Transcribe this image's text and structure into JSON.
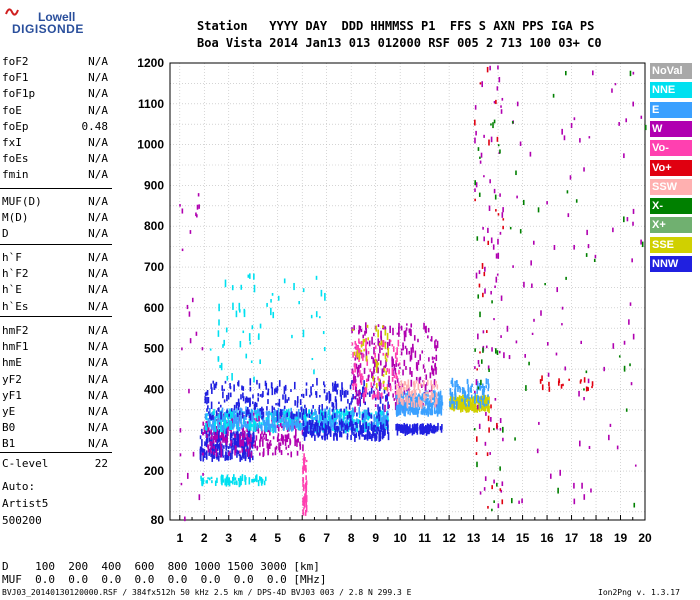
{
  "logo": {
    "line1": "Lowell",
    "line2": "DIGISONDE"
  },
  "header": {
    "row1": "Station   YYYY DAY  DDD HHMMSS P1  FFS S AXN PPS IGA PS",
    "row2": "Boa Vista 2014 Jan13 013 012000 RSF 005 2 713 100 03+ C0"
  },
  "params": {
    "group1": [
      {
        "name": "foF2",
        "value": "N/A"
      },
      {
        "name": "foF1",
        "value": "N/A"
      },
      {
        "name": "foF1p",
        "value": "N/A"
      },
      {
        "name": "foE",
        "value": "N/A"
      },
      {
        "name": "foEp",
        "value": "0.48"
      },
      {
        "name": "fxI",
        "value": "N/A"
      },
      {
        "name": "foEs",
        "value": "N/A"
      },
      {
        "name": "fmin",
        "value": "N/A"
      }
    ],
    "group2": [
      {
        "name": "MUF(D)",
        "value": "N/A"
      },
      {
        "name": "M(D)",
        "value": "N/A"
      },
      {
        "name": "D",
        "value": "N/A"
      }
    ],
    "group3": [
      {
        "name": "h`F",
        "value": "N/A"
      },
      {
        "name": "h`F2",
        "value": "N/A"
      },
      {
        "name": "h`E",
        "value": "N/A"
      },
      {
        "name": "h`Es",
        "value": "N/A"
      }
    ],
    "group4": [
      {
        "name": "hmF2",
        "value": "N/A"
      },
      {
        "name": "hmF1",
        "value": "N/A"
      },
      {
        "name": "hmE",
        "value": "N/A"
      },
      {
        "name": "yF2",
        "value": "N/A"
      },
      {
        "name": "yF1",
        "value": "N/A"
      },
      {
        "name": "yE",
        "value": "N/A"
      },
      {
        "name": "B0",
        "value": "N/A"
      },
      {
        "name": "B1",
        "value": "N/A"
      }
    ],
    "clevel": {
      "name": "C-level",
      "value": "22"
    }
  },
  "auto": {
    "line1": "Auto:",
    "line2": "Artist5",
    "line3": "500200"
  },
  "legend": [
    {
      "label": "NoVal",
      "color": "#a8a8a8"
    },
    {
      "label": "NNE",
      "color": "#00e0f0"
    },
    {
      "label": "E",
      "color": "#3aa0ff"
    },
    {
      "label": "W",
      "color": "#b000b0"
    },
    {
      "label": "Vo-",
      "color": "#ff40b0"
    },
    {
      "label": "Vo+",
      "color": "#e00010"
    },
    {
      "label": "SSW",
      "color": "#ffb0b0"
    },
    {
      "label": "X-",
      "color": "#008000"
    },
    {
      "label": "X+",
      "color": "#70b070"
    },
    {
      "label": "SSE",
      "color": "#d0d000"
    },
    {
      "label": "NNW",
      "color": "#2020e0"
    }
  ],
  "bottom": {
    "d_row": "D    100  200  400  600  800 1000 1500 3000 [km]",
    "muf_row": "MUF  0.0  0.0  0.0  0.0  0.0  0.0  0.0  0.0 [MHz]"
  },
  "footer": {
    "left": "BVJ03_20140130120000.RSF / 384fx512h 50 kHz 2.5 km / DPS-4D BVJ03 003 / 2.8 N 299.3 E",
    "right": "Ion2Png v. 1.3.17"
  },
  "chart_data": {
    "type": "scatter",
    "title": "",
    "xlabel": "",
    "ylabel": "",
    "xlim": [
      0.6,
      20
    ],
    "ylim": [
      80,
      1200
    ],
    "x_ticks": [
      1,
      2,
      3,
      4,
      5,
      6,
      7,
      8,
      9,
      10,
      11,
      12,
      13,
      14,
      15,
      16,
      17,
      18,
      19,
      20
    ],
    "y_ticks": [
      80,
      200,
      300,
      400,
      500,
      600,
      700,
      800,
      900,
      1000,
      1100,
      1200
    ],
    "grid": true,
    "legend_position": "right",
    "clusters": [
      {
        "series": "NNW",
        "x": [
          1.8,
          4.0
        ],
        "y": [
          230,
          300
        ],
        "density": 260
      },
      {
        "series": "W",
        "x": [
          1.9,
          6.0
        ],
        "y": [
          240,
          340
        ],
        "density": 260
      },
      {
        "series": "NNE",
        "x": [
          2.0,
          9.5
        ],
        "y": [
          300,
          345
        ],
        "density": 420
      },
      {
        "series": "E",
        "x": [
          2.0,
          9.5
        ],
        "y": [
          300,
          350
        ],
        "density": 320
      },
      {
        "series": "NNW",
        "x": [
          2.0,
          9.5
        ],
        "y": [
          330,
          420
        ],
        "density": 260
      },
      {
        "series": "NNW",
        "x": [
          6.0,
          9.5
        ],
        "y": [
          280,
          320
        ],
        "density": 180
      },
      {
        "series": "W",
        "x": [
          8.0,
          11.5
        ],
        "y": [
          350,
          560
        ],
        "density": 240
      },
      {
        "series": "Vo-",
        "x": [
          8.0,
          10.0
        ],
        "y": [
          380,
          520
        ],
        "density": 80
      },
      {
        "series": "SSE",
        "x": [
          8.0,
          9.5
        ],
        "y": [
          400,
          560
        ],
        "density": 40
      },
      {
        "series": "E",
        "x": [
          9.8,
          11.7
        ],
        "y": [
          340,
          390
        ],
        "density": 260
      },
      {
        "series": "SSW",
        "x": [
          9.8,
          11.5
        ],
        "y": [
          360,
          420
        ],
        "density": 80
      },
      {
        "series": "NNW",
        "x": [
          9.8,
          11.7
        ],
        "y": [
          295,
          310
        ],
        "density": 120
      },
      {
        "series": "SSE",
        "x": [
          12.0,
          13.6
        ],
        "y": [
          350,
          380
        ],
        "density": 180
      },
      {
        "series": "E",
        "x": [
          12.0,
          13.6
        ],
        "y": [
          360,
          420
        ],
        "density": 80
      },
      {
        "series": "NNE",
        "x": [
          1.8,
          4.5
        ],
        "y": [
          170,
          185
        ],
        "density": 70
      },
      {
        "series": "NNE",
        "x": [
          2.0,
          7.0
        ],
        "y": [
          420,
          680
        ],
        "density": 60
      },
      {
        "series": "Vo-",
        "x": [
          6.0,
          6.15
        ],
        "y": [
          90,
          240
        ],
        "density": 40
      }
    ],
    "scattered": [
      {
        "series": "W",
        "x": [
          13.0,
          14.2
        ],
        "y": [
          100,
          1200
        ],
        "density": 70
      },
      {
        "series": "X-",
        "x": [
          13.0,
          14.2
        ],
        "y": [
          100,
          1200
        ],
        "density": 30
      },
      {
        "series": "Vo+",
        "x": [
          13.0,
          14.2
        ],
        "y": [
          100,
          1200
        ],
        "density": 30
      },
      {
        "series": "W",
        "x": [
          14.0,
          20.0
        ],
        "y": [
          100,
          1200
        ],
        "density": 90
      },
      {
        "series": "X-",
        "x": [
          14.0,
          20.0
        ],
        "y": [
          100,
          1200
        ],
        "density": 30
      },
      {
        "series": "Vo+",
        "x": [
          15.5,
          18.0
        ],
        "y": [
          400,
          430
        ],
        "density": 20
      },
      {
        "series": "W",
        "x": [
          0.8,
          2.0
        ],
        "y": [
          80,
          1000
        ],
        "density": 25
      }
    ]
  }
}
